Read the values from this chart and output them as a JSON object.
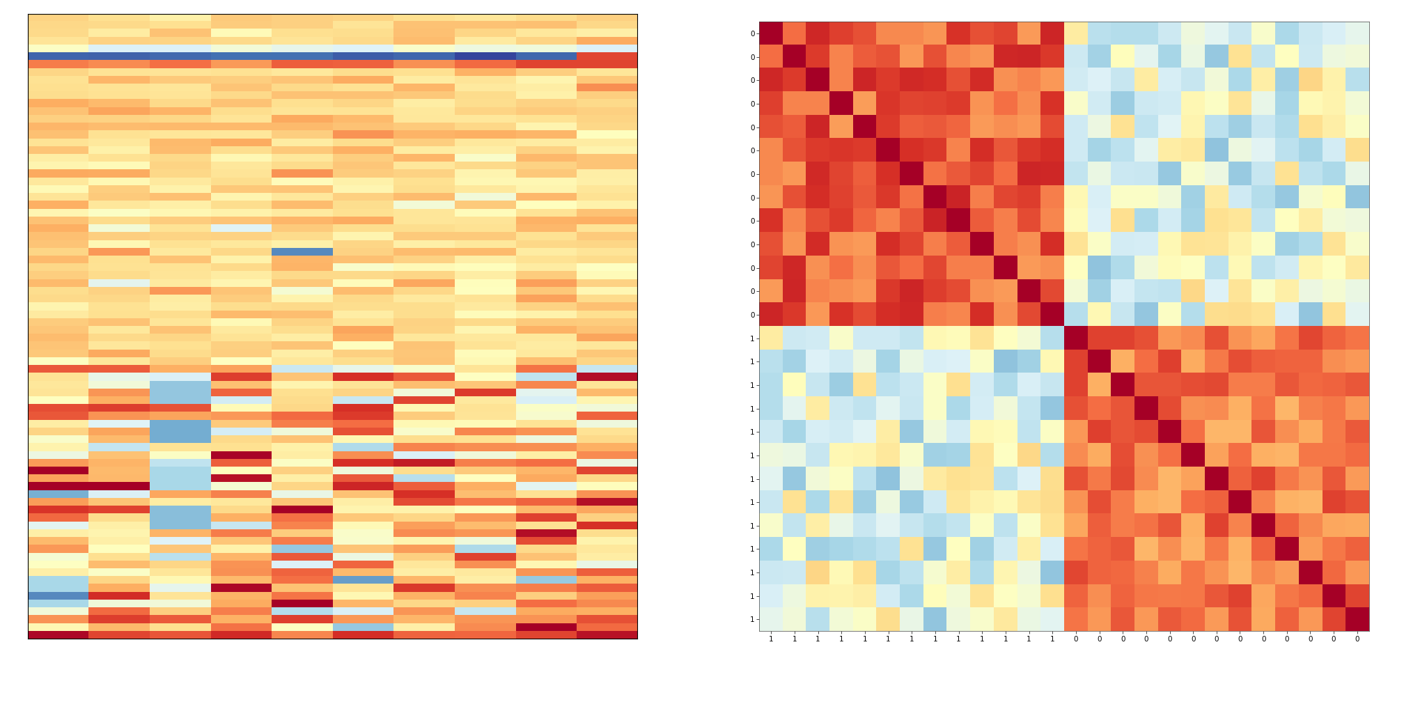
{
  "n_genes": 80,
  "n_samples_expr": 10,
  "n_corr": 26,
  "n_ones": 13,
  "n_zeros": 13,
  "colormap": "RdYlBu_r",
  "vmin_expr": -2.5,
  "vmax_expr": 2.5,
  "vmin_corr": -1,
  "vmax_corr": 1,
  "random_seed": 7,
  "figsize": [
    20.16,
    10.08
  ],
  "dpi": 100
}
